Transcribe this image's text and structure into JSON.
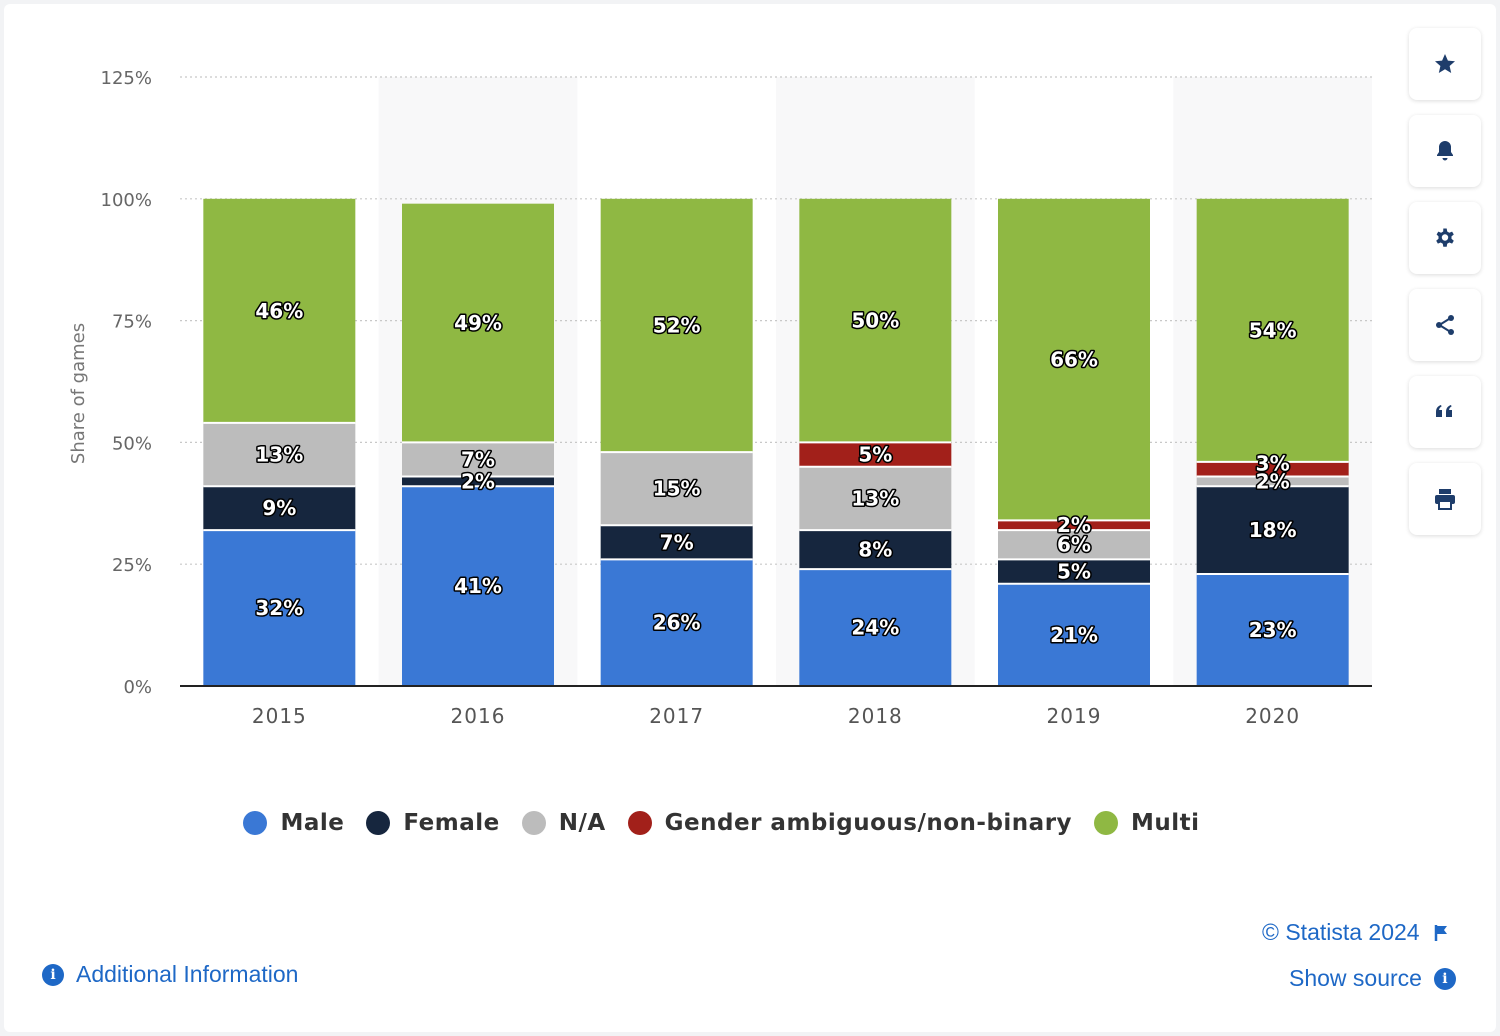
{
  "chart_data": {
    "type": "bar",
    "stacked": true,
    "ylabel": "Share of games",
    "ylim": [
      0,
      125
    ],
    "yticks": [
      "0%",
      "25%",
      "50%",
      "75%",
      "100%",
      "125%"
    ],
    "categories": [
      "2015",
      "2016",
      "2017",
      "2018",
      "2019",
      "2020"
    ],
    "series": [
      {
        "name": "Male",
        "color": "#3a78d5",
        "values": [
          32,
          41,
          26,
          24,
          21,
          23
        ],
        "labels": [
          "32%",
          "41%",
          "26%",
          "24%",
          "21%",
          "23%"
        ]
      },
      {
        "name": "Female",
        "color": "#16263e",
        "values": [
          9,
          2,
          7,
          8,
          5,
          18
        ],
        "labels": [
          "9%",
          "2%",
          "7%",
          "8%",
          "5%",
          "18%"
        ]
      },
      {
        "name": "N/A",
        "color": "#bcbcbc",
        "values": [
          13,
          7,
          15,
          13,
          6,
          2
        ],
        "labels": [
          "13%",
          "7%",
          "15%",
          "13%",
          "6%",
          "2%"
        ]
      },
      {
        "name": "Gender ambiguous/non-binary",
        "color": "#a2201a",
        "values": [
          0,
          0,
          0,
          5,
          2,
          3
        ],
        "labels": [
          "",
          "",
          "",
          "5%",
          "2%",
          "3%"
        ]
      },
      {
        "name": "Multi",
        "color": "#8fb843",
        "values": [
          46,
          49,
          52,
          50,
          66,
          54
        ],
        "labels": [
          "46%",
          "49%",
          "52%",
          "50%",
          "66%",
          "54%"
        ]
      }
    ]
  },
  "sidebar_icons": [
    "star-icon",
    "bell-icon",
    "gear-icon",
    "share-icon",
    "quote-icon",
    "print-icon"
  ],
  "footer": {
    "copyright": "© Statista 2024",
    "show_source": "Show source",
    "additional_info": "Additional Information",
    "info_glyph": "i"
  }
}
